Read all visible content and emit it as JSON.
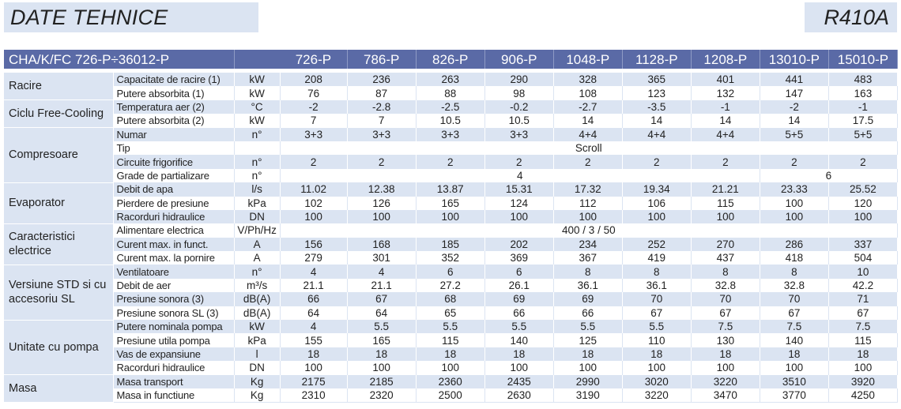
{
  "header": {
    "title": "DATE TEHNICE",
    "refrigerant": "R410A"
  },
  "table": {
    "model_range": "CHA/K/FC 726-P÷36012-P",
    "models": [
      "726-P",
      "786-P",
      "826-P",
      "906-P",
      "1048-P",
      "1128-P",
      "1208-P",
      "13010-P",
      "15010-P"
    ],
    "groups": [
      {
        "name": "Racire",
        "rows": [
          {
            "label": "Capacitate de racire (1)",
            "unit": "kW",
            "values": [
              "208",
              "236",
              "263",
              "290",
              "328",
              "365",
              "401",
              "441",
              "483"
            ]
          },
          {
            "label": "Putere absorbita (1)",
            "unit": "kW",
            "values": [
              "76",
              "87",
              "88",
              "98",
              "108",
              "123",
              "132",
              "147",
              "163"
            ]
          }
        ]
      },
      {
        "name": "Ciclu Free-Cooling",
        "rows": [
          {
            "label": "Temperatura aer (2)",
            "unit": "°C",
            "values": [
              "-2",
              "-2.8",
              "-2.5",
              "-0.2",
              "-2.7",
              "-3.5",
              "-1",
              "-2",
              "-1"
            ]
          },
          {
            "label": "Putere absorbita (2)",
            "unit": "kW",
            "values": [
              "7",
              "7",
              "10.5",
              "10.5",
              "14",
              "14",
              "14",
              "14",
              "17.5"
            ]
          }
        ]
      },
      {
        "name": "Compresoare",
        "rows": [
          {
            "label": "Numar",
            "unit": "n°",
            "values": [
              "3+3",
              "3+3",
              "3+3",
              "3+3",
              "4+4",
              "4+4",
              "4+4",
              "5+5",
              "5+5"
            ]
          },
          {
            "label": "Tip",
            "unit": "",
            "merged": [
              {
                "text": "Scroll",
                "span": 9
              }
            ]
          },
          {
            "label": "Circuite frigorifice",
            "unit": "n°",
            "values": [
              "2",
              "2",
              "2",
              "2",
              "2",
              "2",
              "2",
              "2",
              "2"
            ]
          },
          {
            "label": "Grade de partializare",
            "unit": "n°",
            "merged": [
              {
                "text": "4",
                "span": 7
              },
              {
                "text": "6",
                "span": 2
              }
            ]
          }
        ]
      },
      {
        "name": "Evaporator",
        "rows": [
          {
            "label": "Debit de apa",
            "unit": "l/s",
            "values": [
              "11.02",
              "12.38",
              "13.87",
              "15.31",
              "17.32",
              "19.34",
              "21.21",
              "23.33",
              "25.52"
            ]
          },
          {
            "label": "Pierdere de presiune",
            "unit": "kPa",
            "values": [
              "102",
              "126",
              "165",
              "124",
              "112",
              "106",
              "115",
              "100",
              "120"
            ]
          },
          {
            "label": "Racorduri hidraulice",
            "unit": "DN",
            "values": [
              "100",
              "100",
              "100",
              "100",
              "100",
              "100",
              "100",
              "100",
              "100"
            ]
          }
        ]
      },
      {
        "name": "Caracteristici electrice",
        "rows": [
          {
            "label": "Alimentare electrica",
            "unit": "V/Ph/Hz",
            "merged": [
              {
                "text": "400 / 3 / 50",
                "span": 9
              }
            ]
          },
          {
            "label": "Curent max. in funct.",
            "unit": "A",
            "values": [
              "156",
              "168",
              "185",
              "202",
              "234",
              "252",
              "270",
              "286",
              "337"
            ]
          },
          {
            "label": "Curent max. la pornire",
            "unit": "A",
            "values": [
              "279",
              "301",
              "352",
              "369",
              "367",
              "419",
              "437",
              "418",
              "504"
            ]
          }
        ]
      },
      {
        "name": "Versiune STD si cu accesoriu SL",
        "rows": [
          {
            "label": "Ventilatoare",
            "unit": "n°",
            "values": [
              "4",
              "4",
              "6",
              "6",
              "8",
              "8",
              "8",
              "8",
              "10"
            ]
          },
          {
            "label": "Debit de aer",
            "unit": "m³/s",
            "values": [
              "21.1",
              "21.1",
              "27.2",
              "26.1",
              "36.1",
              "36.1",
              "32.8",
              "32.8",
              "42.2"
            ]
          },
          {
            "label": "Presiune sonora (3)",
            "unit": "dB(A)",
            "values": [
              "66",
              "67",
              "68",
              "69",
              "69",
              "70",
              "70",
              "70",
              "71"
            ]
          },
          {
            "label": "Presiune sonora SL (3)",
            "unit": "dB(A)",
            "values": [
              "64",
              "64",
              "65",
              "66",
              "66",
              "67",
              "67",
              "67",
              "67"
            ]
          }
        ]
      },
      {
        "name": "Unitate cu pompa",
        "rows": [
          {
            "label": "Putere nominala pompa",
            "unit": "kW",
            "values": [
              "4",
              "5.5",
              "5.5",
              "5.5",
              "5.5",
              "5.5",
              "7.5",
              "7.5",
              "7.5"
            ]
          },
          {
            "label": "Presiune utila pompa",
            "unit": "kPa",
            "values": [
              "155",
              "165",
              "115",
              "140",
              "125",
              "110",
              "130",
              "140",
              "115"
            ]
          },
          {
            "label": "Vas de expansiune",
            "unit": "l",
            "values": [
              "18",
              "18",
              "18",
              "18",
              "18",
              "18",
              "18",
              "18",
              "18"
            ]
          },
          {
            "label": "Racorduri hidraulice",
            "unit": "DN",
            "values": [
              "100",
              "100",
              "100",
              "100",
              "100",
              "100",
              "100",
              "100",
              "100"
            ]
          }
        ]
      },
      {
        "name": "Masa",
        "rows": [
          {
            "label": "Masa transport",
            "unit": "Kg",
            "values": [
              "2175",
              "2185",
              "2360",
              "2435",
              "2990",
              "3020",
              "3220",
              "3510",
              "3920"
            ]
          },
          {
            "label": "Masa in functiune",
            "unit": "Kg",
            "values": [
              "2310",
              "2320",
              "2500",
              "2630",
              "3190",
              "3220",
              "3470",
              "3770",
              "4250"
            ]
          }
        ]
      }
    ]
  }
}
